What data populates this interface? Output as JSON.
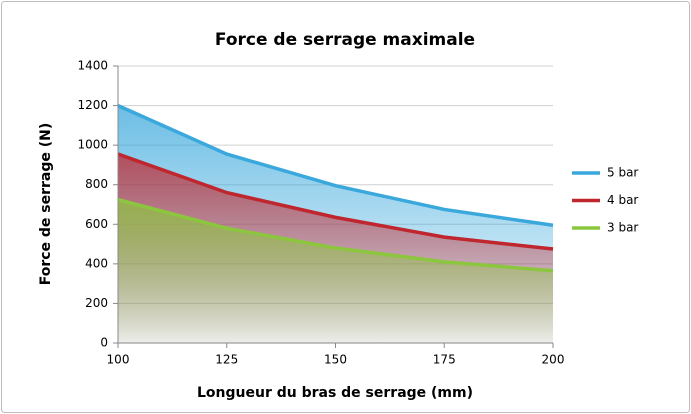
{
  "chart_data": {
    "type": "line",
    "area": true,
    "title": "Force de serrage maximale",
    "x_label": "Longueur du bras de serrage (mm)",
    "y_label": "Force de serrage (N)",
    "x": [
      100,
      125,
      150,
      175,
      200
    ],
    "series": [
      {
        "name": "5 bar",
        "color": "#3aa8dc",
        "values": [
          1200,
          955,
          795,
          675,
          595
        ]
      },
      {
        "name": "4 bar",
        "color": "#c0262e",
        "values": [
          955,
          760,
          635,
          535,
          475
        ]
      },
      {
        "name": "3 bar",
        "color": "#8cc63f",
        "values": [
          725,
          580,
          480,
          410,
          365
        ]
      }
    ],
    "xlim": [
      100,
      200
    ],
    "xticks": [
      100,
      125,
      150,
      175,
      200
    ],
    "ylim": [
      0,
      1400
    ],
    "yticks": [
      0,
      200,
      400,
      600,
      800,
      1000,
      1200,
      1400
    ],
    "grid": true,
    "legend": "right"
  }
}
